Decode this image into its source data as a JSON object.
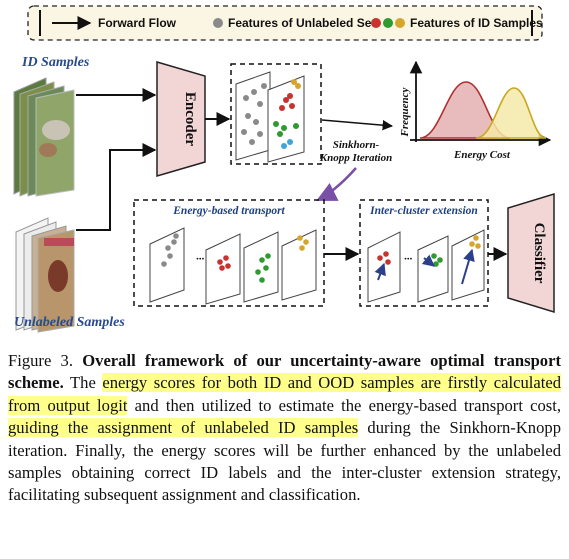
{
  "legend": {
    "forward_flow": "Forward Flow",
    "unlabeled_features": "Features of Unlabeled Set",
    "id_features": "Features of ID Samples"
  },
  "labels": {
    "id_samples": "ID Samples",
    "unlabeled_samples": "Unlabeled Samples",
    "encoder": "Encoder",
    "classifier": "Classifier",
    "sinkhorn": "Sinkhorn-",
    "sinkhorn2": "Knopp Iteration",
    "energy_transport": "Energy-based transport",
    "inter_cluster": "Inter-cluster extension",
    "frequency": "Frequency",
    "energy_cost": "Energy Cost",
    "dots": "···"
  },
  "colors": {
    "red_cluster": "#c8322f",
    "green_cluster": "#2f9a2f",
    "yellow_cluster": "#d4a72c",
    "gray_feature": "#8a8a8a",
    "module_fill": "#f2d6d6",
    "curve_red": "#e8bcbc",
    "curve_yellow": "#f4e9a8"
  },
  "caption": {
    "prefix": "Figure 3. ",
    "bold_title": "Overall framework of our uncertainty-aware optimal transport scheme.",
    "s1": " The ",
    "h1": "energy scores for both ID and OOD samples are firstly calculated from output logit",
    "s2": " and then utilized to estimate the energy-based transport cost, ",
    "h2": "guiding the assignment of unlabeled ID samples",
    "s3": " during the Sinkhorn-Knopp iteration. Finally, the energy scores will be further enhanced by the unlabeled samples obtaining correct ID labels and the inter-cluster extension strategy, facilitating subsequent assignment and classification."
  }
}
